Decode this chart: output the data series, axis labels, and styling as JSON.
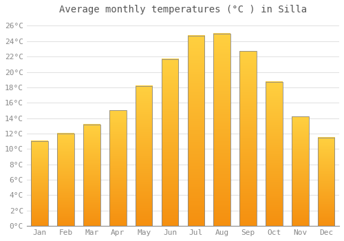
{
  "title": "Average monthly temperatures (°C ) in Silla",
  "months": [
    "Jan",
    "Feb",
    "Mar",
    "Apr",
    "May",
    "Jun",
    "Jul",
    "Aug",
    "Sep",
    "Oct",
    "Nov",
    "Dec"
  ],
  "values": [
    11,
    12,
    13.2,
    15,
    18.2,
    21.7,
    24.7,
    25,
    22.7,
    18.7,
    14.2,
    11.5
  ],
  "bar_color_top": "#FFD040",
  "bar_color_bottom": "#F59010",
  "bar_edge_color": "#888888",
  "ylim": [
    0,
    27
  ],
  "yticks": [
    0,
    2,
    4,
    6,
    8,
    10,
    12,
    14,
    16,
    18,
    20,
    22,
    24,
    26
  ],
  "ytick_labels": [
    "0°C",
    "2°C",
    "4°C",
    "6°C",
    "8°C",
    "10°C",
    "12°C",
    "14°C",
    "16°C",
    "18°C",
    "20°C",
    "22°C",
    "24°C",
    "26°C"
  ],
  "background_color": "#ffffff",
  "grid_color": "#e0e0e0",
  "title_fontsize": 10,
  "tick_fontsize": 8,
  "font_family": "monospace",
  "bar_width": 0.65,
  "n_gradient_steps": 100
}
